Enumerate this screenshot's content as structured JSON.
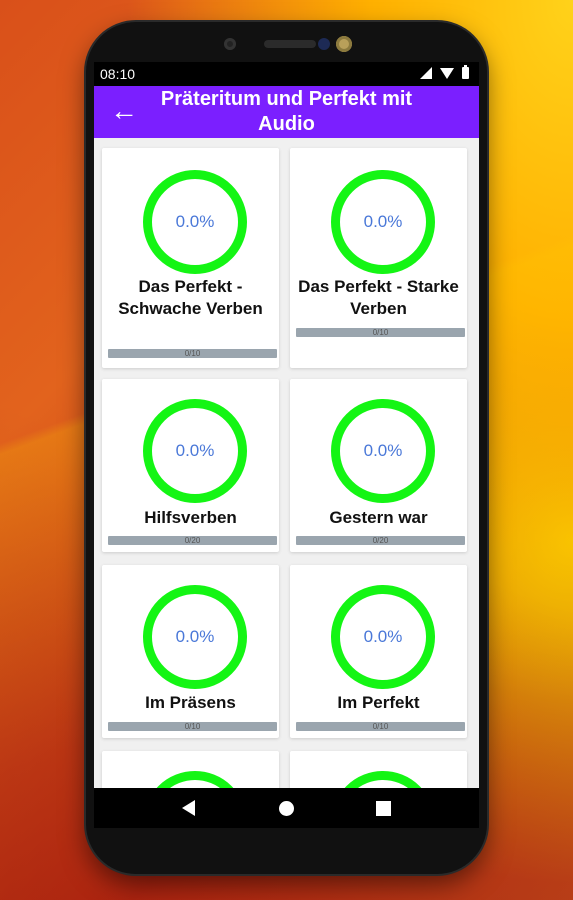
{
  "status_bar": {
    "time": "08:10"
  },
  "app_bar": {
    "back_icon": "arrow-left-icon",
    "title": "Präteritum und Perfekt mit Audio"
  },
  "lessons": [
    {
      "percent": "0.0%",
      "title": "Das Perfekt - Schwache Verben",
      "progress_text": "0/10",
      "progress": 0
    },
    {
      "percent": "0.0%",
      "title": "Das Perfekt - Starke Verben",
      "progress_text": "0/10",
      "progress": 0
    },
    {
      "percent": "0.0%",
      "title": "Hilfsverben",
      "progress_text": "0/20",
      "progress": 0
    },
    {
      "percent": "0.0%",
      "title": "Gestern war",
      "progress_text": "0/20",
      "progress": 0
    },
    {
      "percent": "0.0%",
      "title": "Im Präsens",
      "progress_text": "0/10",
      "progress": 0
    },
    {
      "percent": "0.0%",
      "title": "Im Perfekt",
      "progress_text": "0/10",
      "progress": 0
    }
  ],
  "colors": {
    "app_bar": "#7b1fff",
    "ring": "#14f514",
    "percent_text": "#4a78d8"
  },
  "nav_bar": {
    "icons": [
      "triangle-back-icon",
      "circle-home-icon",
      "square-recents-icon"
    ]
  }
}
